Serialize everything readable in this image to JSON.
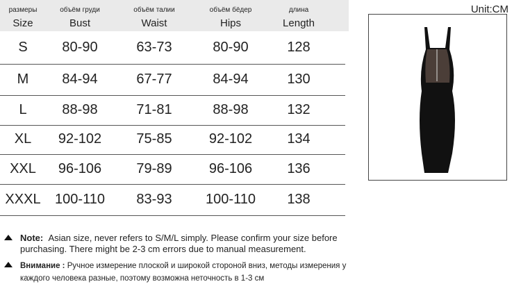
{
  "unit": "Unit:CM",
  "header": {
    "columns": [
      {
        "ru": "размеры",
        "en": "Size"
      },
      {
        "ru": "объём груди",
        "en": "Bust"
      },
      {
        "ru": "объём талии",
        "en": "Waist"
      },
      {
        "ru": "объём бёдер",
        "en": "Hips"
      },
      {
        "ru": "длина",
        "en": "Length"
      }
    ]
  },
  "table": {
    "rows": [
      [
        "S",
        "80-90",
        "63-73",
        "80-90",
        "128"
      ],
      [
        "M",
        "84-94",
        "67-77",
        "84-94",
        "130"
      ],
      [
        "L",
        "88-98",
        "71-81",
        "88-98",
        "132"
      ],
      [
        "XL",
        "92-102",
        "75-85",
        "92-102",
        "134"
      ],
      [
        "XXL",
        "96-106",
        "79-89",
        "96-106",
        "136"
      ],
      [
        "XXXL",
        "100-110",
        "83-93",
        "100-110",
        "138"
      ]
    ]
  },
  "notes": [
    {
      "label": "Note:",
      "text": "Asian size, never refers to S/M/L simply. Please confirm your size before purchasing. There might be 2-3 cm errors due to manual measurement."
    },
    {
      "label": "Внимание :",
      "text": "Ручное измерение плоской и широкой стороной вниз, методы измерения у каждого человека разные, поэтому возможна неточность в 1-3 см"
    }
  ]
}
